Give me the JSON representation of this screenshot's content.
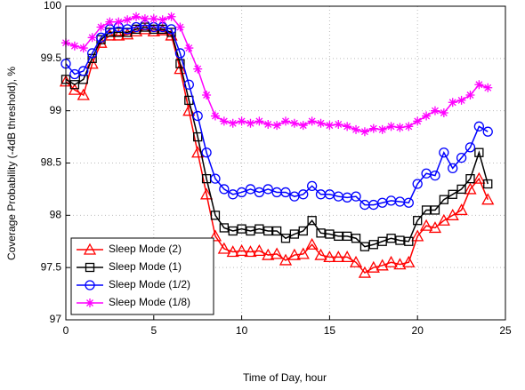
{
  "chart_data": {
    "type": "line",
    "x_label": "Time of Day, hour",
    "y_label": "Coverage Probability (-4dB threshold), %",
    "x": [
      0,
      0.5,
      1,
      1.5,
      2,
      2.5,
      3,
      3.5,
      4,
      4.5,
      5,
      5.5,
      6,
      6.5,
      7,
      7.5,
      8,
      8.5,
      9,
      9.5,
      10,
      10.5,
      11,
      11.5,
      12,
      12.5,
      13,
      13.5,
      14,
      14.5,
      15,
      15.5,
      16,
      16.5,
      17,
      17.5,
      18,
      18.5,
      19,
      19.5,
      20,
      20.5,
      21,
      21.5,
      22,
      22.5,
      23,
      23.5,
      24
    ],
    "series": [
      {
        "name": "Sleep Mode (2)",
        "color": "#ff0000",
        "marker": "triangle",
        "values": [
          99.28,
          99.2,
          99.15,
          99.45,
          99.65,
          99.72,
          99.72,
          99.73,
          99.76,
          99.78,
          99.76,
          99.77,
          99.72,
          99.4,
          99.0,
          98.6,
          98.2,
          97.8,
          97.68,
          97.65,
          97.66,
          97.65,
          97.66,
          97.62,
          97.63,
          97.57,
          97.62,
          97.63,
          97.72,
          97.62,
          97.6,
          97.6,
          97.6,
          97.55,
          97.45,
          97.5,
          97.52,
          97.55,
          97.53,
          97.55,
          97.8,
          97.9,
          97.88,
          97.95,
          98.0,
          98.05,
          98.25,
          98.35,
          98.15
        ]
      },
      {
        "name": "Sleep Mode (1)",
        "color": "#000000",
        "marker": "square",
        "values": [
          99.3,
          99.25,
          99.3,
          99.5,
          99.68,
          99.75,
          99.75,
          99.75,
          99.78,
          99.8,
          99.78,
          99.78,
          99.75,
          99.45,
          99.1,
          98.75,
          98.35,
          98.0,
          97.88,
          97.85,
          97.87,
          97.85,
          97.87,
          97.85,
          97.85,
          97.78,
          97.82,
          97.85,
          97.95,
          97.83,
          97.82,
          97.8,
          97.8,
          97.78,
          97.7,
          97.72,
          97.75,
          97.78,
          97.76,
          97.75,
          97.95,
          98.05,
          98.05,
          98.15,
          98.2,
          98.25,
          98.35,
          98.6,
          98.3
        ]
      },
      {
        "name": "Sleep Mode (1/2)",
        "color": "#0000ff",
        "marker": "circle",
        "values": [
          99.45,
          99.35,
          99.38,
          99.55,
          99.7,
          99.78,
          99.8,
          99.78,
          99.8,
          99.82,
          99.8,
          99.8,
          99.78,
          99.55,
          99.25,
          98.95,
          98.6,
          98.35,
          98.25,
          98.2,
          98.22,
          98.25,
          98.22,
          98.25,
          98.22,
          98.22,
          98.18,
          98.2,
          98.28,
          98.2,
          98.2,
          98.18,
          98.17,
          98.18,
          98.1,
          98.1,
          98.12,
          98.14,
          98.13,
          98.12,
          98.3,
          98.4,
          98.38,
          98.6,
          98.45,
          98.55,
          98.65,
          98.85,
          98.8
        ]
      },
      {
        "name": "Sleep Mode (1/8)",
        "color": "#ff00ff",
        "marker": "star",
        "values": [
          99.65,
          99.62,
          99.6,
          99.7,
          99.8,
          99.85,
          99.85,
          99.87,
          99.9,
          99.88,
          99.88,
          99.87,
          99.9,
          99.8,
          99.6,
          99.4,
          99.15,
          98.95,
          98.9,
          98.88,
          98.9,
          98.88,
          98.9,
          98.87,
          98.86,
          98.9,
          98.88,
          98.86,
          98.9,
          98.88,
          98.86,
          98.87,
          98.85,
          98.82,
          98.8,
          98.83,
          98.82,
          98.85,
          98.84,
          98.85,
          98.9,
          98.95,
          99.0,
          98.98,
          99.08,
          99.1,
          99.15,
          99.25,
          99.22
        ]
      }
    ],
    "xlim": [
      0,
      25
    ],
    "xticks": [
      0,
      5,
      10,
      15,
      20,
      25
    ],
    "ylim": [
      97,
      100
    ],
    "yticks": [
      97,
      97.5,
      98,
      98.5,
      99,
      99.5,
      100
    ],
    "grid": true,
    "legend": "southwest"
  }
}
